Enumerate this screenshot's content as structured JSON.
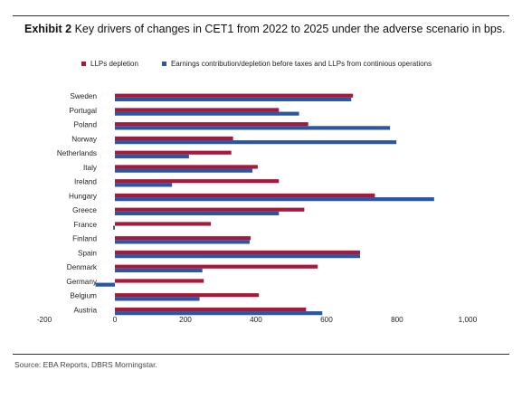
{
  "header": {
    "title_lead": "Exhibit 2",
    "title_rest": " Key drivers of changes in CET1 from 2022 to 2025 under the adverse scenario in bps."
  },
  "footer": {
    "source": "Source: EBA Reports, DBRS Morningstar."
  },
  "colors": {
    "llp": "#a6193c",
    "earnings": "#2a56a3"
  },
  "chart_data": {
    "type": "bar",
    "orientation": "horizontal",
    "categories": [
      "Sweden",
      "Portugal",
      "Poland",
      "Norway",
      "Netherlands",
      "Italy",
      "Ireland",
      "Hungary",
      "Greece",
      "France",
      "Finland",
      "Spain",
      "Denmark",
      "Germany",
      "Belgium",
      "Austria"
    ],
    "series": [
      {
        "name": "LLPs depletion",
        "values": [
          675,
          465,
          548,
          335,
          330,
          405,
          465,
          737,
          537,
          272,
          385,
          695,
          575,
          252,
          408,
          542
        ]
      },
      {
        "name": "Earnings contribution/depletion before taxes and LLPs from continious operations",
        "values": [
          670,
          522,
          780,
          798,
          210,
          390,
          162,
          905,
          465,
          -5,
          382,
          695,
          248,
          -55,
          240,
          588
        ]
      }
    ],
    "xlim": [
      -200,
      1000
    ],
    "xticks": [
      "-200",
      "0",
      "200",
      "400",
      "600",
      "800",
      "1,000"
    ],
    "xtick_values": [
      -200,
      0,
      200,
      400,
      600,
      800,
      1000
    ],
    "legend_position": "top",
    "grid": false
  }
}
